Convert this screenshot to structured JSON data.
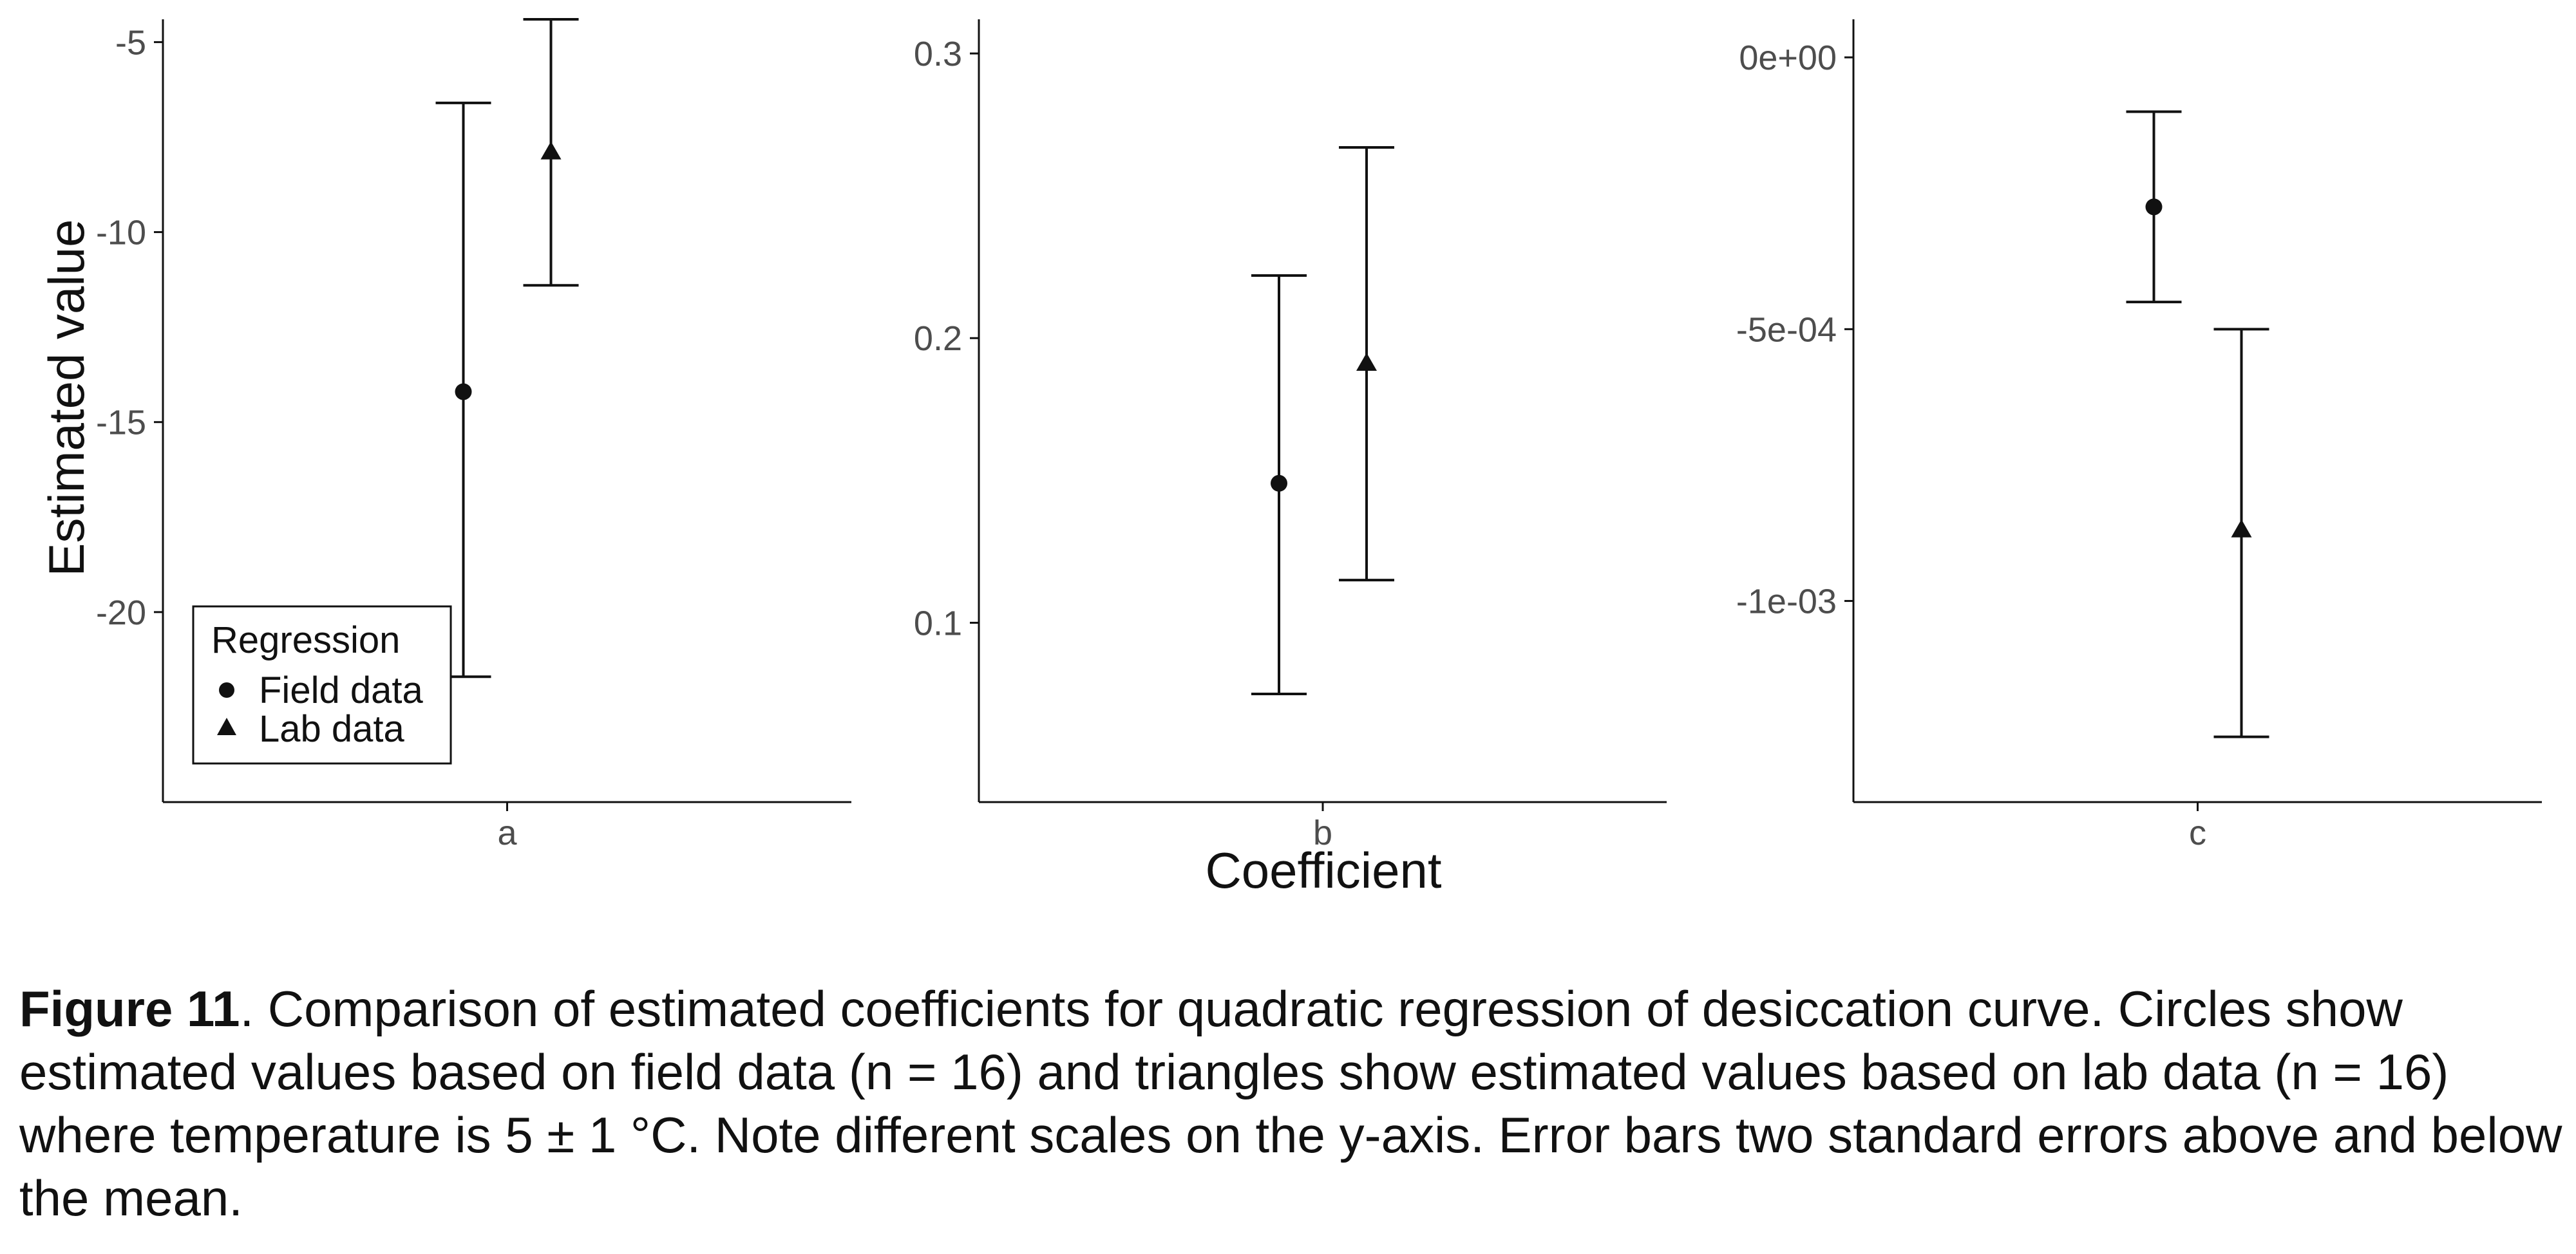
{
  "chart_data": [
    {
      "type": "scatter",
      "panel": "a",
      "categories": [
        "a"
      ],
      "ylabel": "Estimated value",
      "ylim": [
        -25,
        -4.4
      ],
      "yticks": [
        -5,
        -10,
        -15,
        -20
      ],
      "ytick_labels": [
        "-5",
        "-10",
        "-15",
        "-20"
      ],
      "series": [
        {
          "name": "Field data",
          "marker": "circle",
          "estimate": -14.2,
          "lower": -21.7,
          "upper": -6.6
        },
        {
          "name": "Lab data",
          "marker": "triangle",
          "estimate": -7.9,
          "lower": -11.4,
          "upper": -4.4
        }
      ],
      "legend": {
        "title": "Regression",
        "placement": "bottom-left"
      }
    },
    {
      "type": "scatter",
      "panel": "b",
      "categories": [
        "b"
      ],
      "xlabel": "Coefficient",
      "ylim": [
        0.037,
        0.312
      ],
      "yticks": [
        0.1,
        0.2,
        0.3
      ],
      "ytick_labels": [
        "0.1",
        "0.2",
        "0.3"
      ],
      "series": [
        {
          "name": "Field data",
          "marker": "circle",
          "estimate": 0.149,
          "lower": 0.075,
          "upper": 0.222
        },
        {
          "name": "Lab data",
          "marker": "triangle",
          "estimate": 0.191,
          "lower": 0.115,
          "upper": 0.267
        }
      ]
    },
    {
      "type": "scatter",
      "panel": "c",
      "categories": [
        "c"
      ],
      "ylim": [
        -0.00137,
        7e-05
      ],
      "yticks": [
        0,
        -0.0005,
        -0.001
      ],
      "ytick_labels": [
        "0e+00",
        "-5e-04",
        "-1e-03"
      ],
      "series": [
        {
          "name": "Field data",
          "marker": "circle",
          "estimate": -0.000275,
          "lower": -0.00045,
          "upper": -0.0001
        },
        {
          "name": "Lab data",
          "marker": "triangle",
          "estimate": -0.00087,
          "lower": -0.00125,
          "upper": -0.0005
        }
      ]
    }
  ],
  "caption": {
    "lead": "Figure 11",
    "text": ". Comparison of estimated coefficients for quadratic regression of desiccation curve. Circles show estimated values based on field data (n = 16) and triangles show estimated values based on lab data (n = 16) where temperature is 5 ± 1 °C. Note different scales on the y-axis. Error bars two standard errors above and below the mean."
  },
  "colors": {
    "ink": "#111111",
    "tick_text": "#4d4d4d",
    "background": "#ffffff"
  }
}
